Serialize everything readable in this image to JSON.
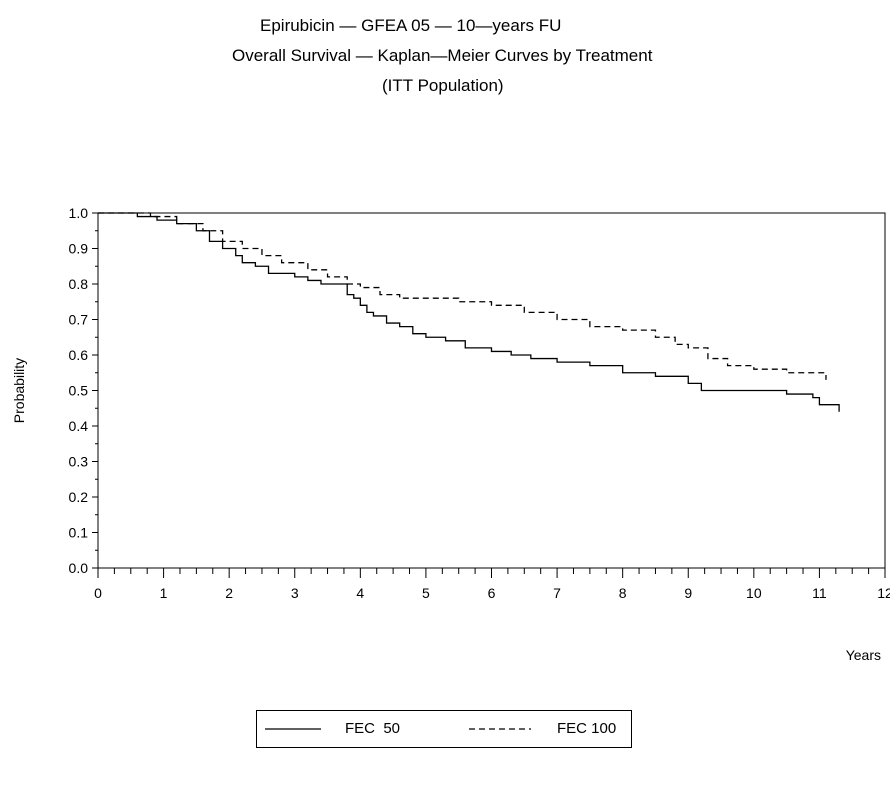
{
  "chart_data": {
    "type": "line",
    "title": "Epirubicin — GFEA 05 — 10—years FU",
    "subtitle": "Overall Survival — Kaplan—Meier Curves by Treatment",
    "subtitle2": "(ITT Population)",
    "xlabel": "Years",
    "ylabel": "Probability",
    "xlim": [
      0,
      12
    ],
    "ylim": [
      0.0,
      1.0
    ],
    "xticks": [
      "0",
      "1",
      "2",
      "3",
      "4",
      "5",
      "6",
      "7",
      "8",
      "9",
      "10",
      "11",
      "12"
    ],
    "yticks": [
      "0.0",
      "0.1",
      "0.2",
      "0.3",
      "0.4",
      "0.5",
      "0.6",
      "0.7",
      "0.8",
      "0.9",
      "1.0"
    ],
    "legend_position": "bottom",
    "grid": false,
    "series": [
      {
        "name": "FEC 50",
        "style": "solid",
        "color": "#000000",
        "x": [
          0,
          0.3,
          0.6,
          0.9,
          1.2,
          1.5,
          1.7,
          1.9,
          2.1,
          2.2,
          2.4,
          2.6,
          2.8,
          3.0,
          3.2,
          3.4,
          3.6,
          3.8,
          3.9,
          4.0,
          4.1,
          4.2,
          4.4,
          4.6,
          4.8,
          5.0,
          5.3,
          5.6,
          6.0,
          6.3,
          6.6,
          7.0,
          7.5,
          8.0,
          8.5,
          8.8,
          9.0,
          9.2,
          9.5,
          10.0,
          10.5,
          10.9,
          11.0,
          11.3
        ],
        "y": [
          1.0,
          1.0,
          0.99,
          0.98,
          0.97,
          0.95,
          0.92,
          0.9,
          0.88,
          0.86,
          0.85,
          0.83,
          0.83,
          0.82,
          0.81,
          0.8,
          0.8,
          0.77,
          0.76,
          0.74,
          0.72,
          0.71,
          0.69,
          0.68,
          0.66,
          0.65,
          0.64,
          0.62,
          0.61,
          0.6,
          0.59,
          0.58,
          0.57,
          0.55,
          0.54,
          0.54,
          0.52,
          0.5,
          0.5,
          0.5,
          0.49,
          0.48,
          0.46,
          0.44
        ]
      },
      {
        "name": "FEC 100",
        "style": "dashed",
        "color": "#000000",
        "x": [
          0,
          0.4,
          0.8,
          1.2,
          1.6,
          1.9,
          2.2,
          2.5,
          2.8,
          3.2,
          3.5,
          3.8,
          4.0,
          4.3,
          4.6,
          5.0,
          5.5,
          6.0,
          6.5,
          7.0,
          7.5,
          8.0,
          8.5,
          8.8,
          9.0,
          9.3,
          9.6,
          10.0,
          10.5,
          11.0,
          11.1
        ],
        "y": [
          1.0,
          1.0,
          0.99,
          0.97,
          0.95,
          0.92,
          0.9,
          0.88,
          0.86,
          0.84,
          0.82,
          0.8,
          0.79,
          0.77,
          0.76,
          0.76,
          0.75,
          0.74,
          0.72,
          0.7,
          0.68,
          0.67,
          0.65,
          0.63,
          0.62,
          0.59,
          0.57,
          0.56,
          0.55,
          0.55,
          0.53
        ]
      }
    ]
  },
  "legend": {
    "fec50": "FEC  50",
    "fec100": "FEC 100"
  }
}
